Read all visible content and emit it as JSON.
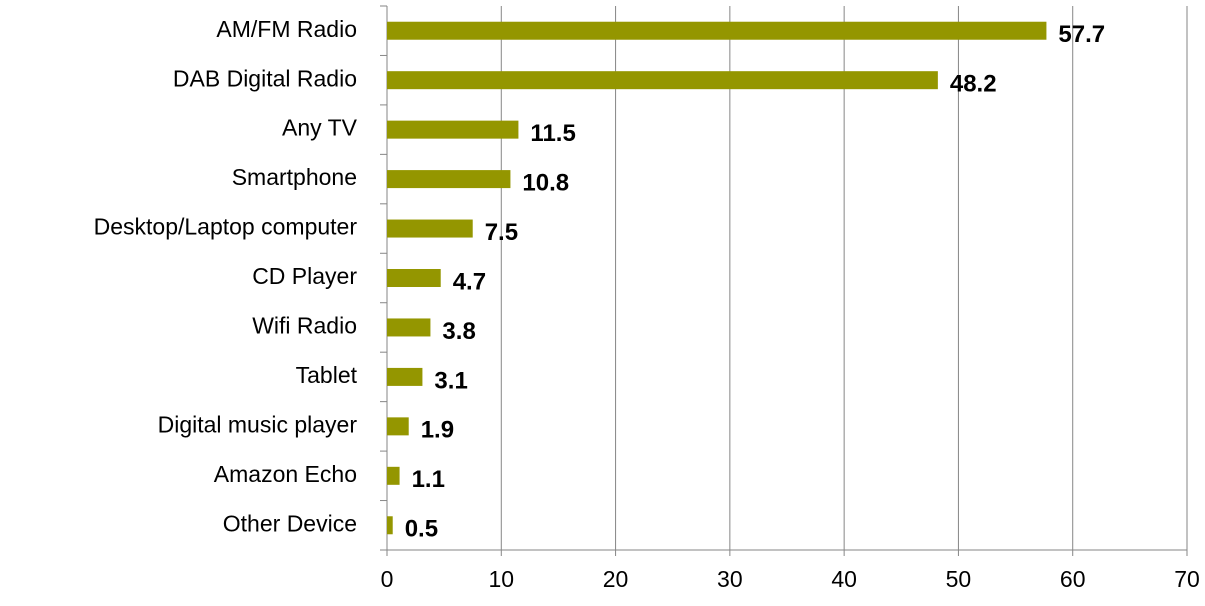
{
  "chart_data": {
    "type": "bar",
    "orientation": "horizontal",
    "categories": [
      "AM/FM Radio",
      "DAB Digital Radio",
      "Any TV",
      "Smartphone",
      "Desktop/Laptop computer",
      "CD Player",
      "Wifi Radio",
      "Tablet",
      "Digital music player",
      "Amazon Echo",
      "Other Device"
    ],
    "values": [
      57.7,
      48.2,
      11.5,
      10.8,
      7.5,
      4.7,
      3.8,
      3.1,
      1.9,
      1.1,
      0.5
    ],
    "color": "#949600",
    "xlim": [
      0,
      70
    ],
    "xticks": [
      0,
      10,
      20,
      30,
      40,
      50,
      60,
      70
    ],
    "grid": true
  }
}
